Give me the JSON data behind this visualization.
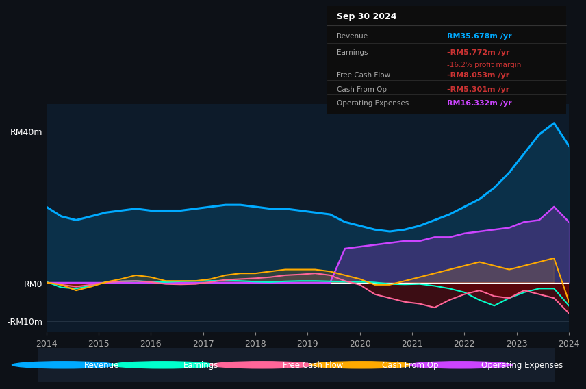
{
  "bg_color": "#0d1117",
  "plot_bg_color": "#0d1b2a",
  "title": "Sep 30 2024",
  "ylim": [
    -13,
    47
  ],
  "yticks": [
    -10,
    0,
    40
  ],
  "ytick_labels": [
    "-RM10m",
    "RM0",
    "RM40m"
  ],
  "xlabel_years": [
    "2014",
    "2015",
    "2016",
    "2017",
    "2018",
    "2019",
    "2020",
    "2021",
    "2022",
    "2023",
    "2024"
  ],
  "colors": {
    "revenue": "#00aaff",
    "earnings": "#00ffcc",
    "free_cash_flow": "#ff6699",
    "cash_from_op": "#ffaa00",
    "operating_expenses": "#cc44ff"
  },
  "revenue": [
    20,
    17.5,
    16.5,
    17.5,
    18.5,
    19,
    19.5,
    19,
    19,
    19,
    19.5,
    20,
    20.5,
    20.5,
    20,
    19.5,
    19.5,
    19,
    18.5,
    18,
    16,
    15,
    14,
    13.5,
    14,
    15,
    16.5,
    18,
    20,
    22,
    25,
    29,
    34,
    39,
    42,
    36
  ],
  "earnings": [
    0.3,
    -1.2,
    -1.5,
    -0.8,
    0.2,
    0.4,
    0.5,
    0.3,
    0.2,
    0.4,
    0.5,
    0.5,
    0.6,
    0.5,
    0.3,
    0.2,
    0.4,
    0.5,
    0.5,
    0.4,
    0.3,
    0.3,
    0.1,
    -0.3,
    -0.4,
    -0.3,
    -0.8,
    -1.5,
    -2.5,
    -4.5,
    -6,
    -4,
    -2.5,
    -1.5,
    -1.5,
    -6
  ],
  "free_cash_flow": [
    0.1,
    -0.5,
    -1,
    -0.5,
    0.1,
    0.4,
    0.5,
    0.2,
    -0.3,
    -0.4,
    -0.3,
    0.2,
    0.8,
    1,
    1.2,
    1.5,
    2,
    2.2,
    2.5,
    2,
    0.5,
    -0.5,
    -3,
    -4,
    -5,
    -5.5,
    -6.5,
    -4.5,
    -3,
    -2,
    -3.5,
    -4,
    -2,
    -3,
    -4,
    -8
  ],
  "cash_from_op": [
    0.1,
    -0.5,
    -2,
    -1,
    0.2,
    1,
    2,
    1.5,
    0.5,
    0.5,
    0.5,
    1,
    2,
    2.5,
    2.5,
    3,
    3.5,
    3.5,
    3.5,
    3,
    2,
    1,
    -0.5,
    -0.5,
    0.5,
    1.5,
    2.5,
    3.5,
    4.5,
    5.5,
    4.5,
    3.5,
    4.5,
    5.5,
    6.5,
    -5
  ],
  "operating_expenses": [
    0,
    0,
    0,
    0,
    0,
    0,
    0,
    0,
    0,
    0,
    0,
    0,
    0,
    0,
    0,
    0,
    0,
    0,
    0,
    0,
    9,
    9.5,
    10,
    10.5,
    11,
    11,
    12,
    12,
    13,
    13.5,
    14,
    14.5,
    16,
    16.5,
    20,
    16
  ],
  "rows": [
    {
      "label": "Revenue",
      "value": "RM35.678m",
      "val_color": "#00aaff",
      "sub": null,
      "sub_color": null
    },
    {
      "label": "Earnings",
      "value": "-RM5.772m",
      "val_color": "#cc3333",
      "sub": "-16.2% profit margin",
      "sub_color": "#cc3333"
    },
    {
      "label": "Free Cash Flow",
      "value": "-RM8.053m",
      "val_color": "#cc3333",
      "sub": null,
      "sub_color": null
    },
    {
      "label": "Cash From Op",
      "value": "-RM5.301m",
      "val_color": "#cc3333",
      "sub": null,
      "sub_color": null
    },
    {
      "label": "Operating Expenses",
      "value": "RM16.332m",
      "val_color": "#cc44ff",
      "sub": null,
      "sub_color": null
    }
  ],
  "legend_items": [
    {
      "label": "Revenue",
      "color": "#00aaff"
    },
    {
      "label": "Earnings",
      "color": "#00ffcc"
    },
    {
      "label": "Free Cash Flow",
      "color": "#ff6699"
    },
    {
      "label": "Cash From Op",
      "color": "#ffaa00"
    },
    {
      "label": "Operating Expenses",
      "color": "#cc44ff"
    }
  ]
}
